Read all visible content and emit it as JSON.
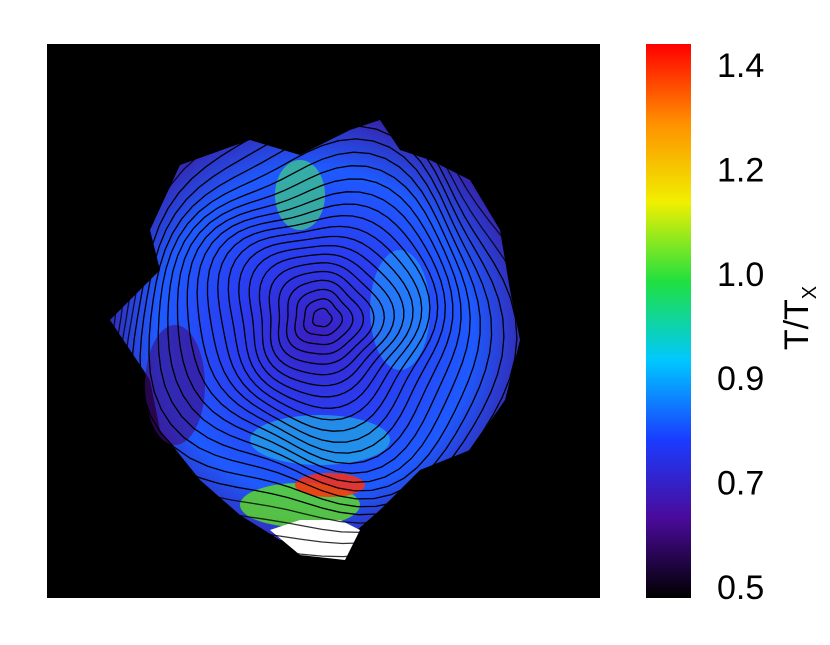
{
  "chart_data": {
    "type": "heatmap",
    "colorbar": {
      "label": "T/T",
      "label_sub": "X",
      "ticks": [
        0.5,
        0.7,
        0.9,
        {
          "value": 1,
          "label": "1.0"
        },
        1.2,
        1.4
      ],
      "colors": [
        "#000000",
        "#4a0a9a",
        "#1a3cff",
        "#00c8ff",
        "#20e040",
        "#f0f000",
        "#ff9000",
        "#ff0000"
      ]
    }
  }
}
